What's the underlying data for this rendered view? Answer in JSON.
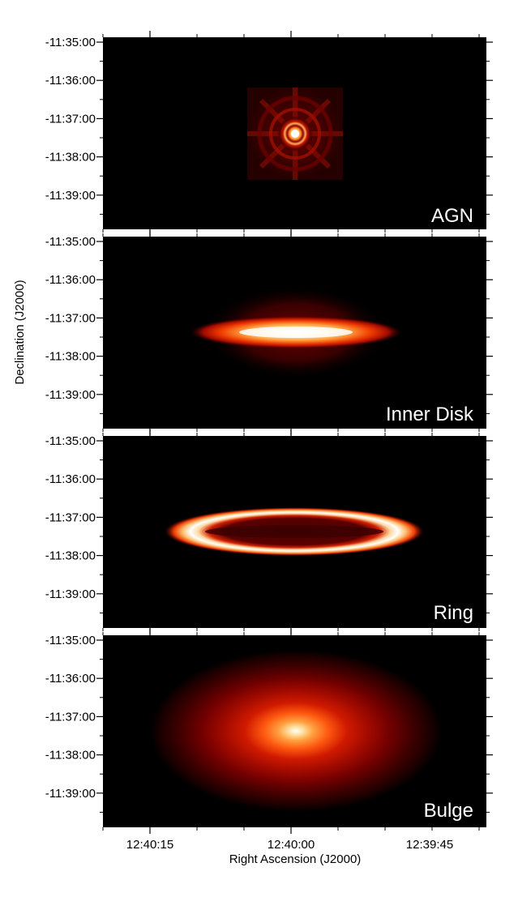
{
  "figure": {
    "xlabel": "Right Ascension (J2000)",
    "ylabel": "Declination (J2000)",
    "x_ticks": [
      "12:40:15",
      "12:40:00",
      "12:39:45"
    ],
    "y_ticks": [
      "-11:35:00",
      "-11:36:00",
      "-11:37:00",
      "-11:38:00",
      "-11:39:00"
    ],
    "colormap": [
      "#000000",
      "#3a0000",
      "#6a0000",
      "#a00a00",
      "#d01a00",
      "#ee3a00",
      "#ff7a10",
      "#ffb050",
      "#ffe0a0",
      "#ffffff"
    ],
    "panels": [
      {
        "id": "agn",
        "label": "AGN"
      },
      {
        "id": "disk",
        "label": "Inner Disk"
      },
      {
        "id": "ring",
        "label": "Ring"
      },
      {
        "id": "bulge",
        "label": "Bulge"
      }
    ]
  }
}
